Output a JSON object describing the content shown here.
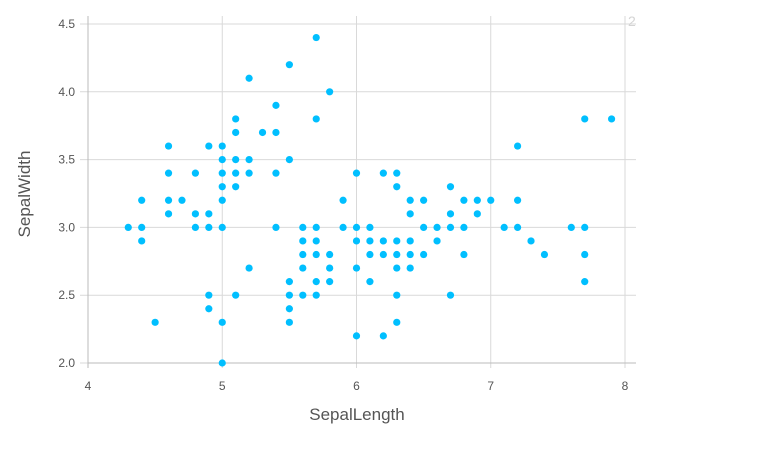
{
  "chart_data": {
    "type": "scatter",
    "xlabel": "SepalLength",
    "ylabel": "SepalWidth",
    "xlim": [
      4,
      8
    ],
    "ylim": [
      2.0,
      4.5
    ],
    "x_ticks": [
      "4",
      "5",
      "6",
      "7",
      "8"
    ],
    "y_ticks": [
      "2.0",
      "2.5",
      "3.0",
      "3.5",
      "4.0",
      "4.5"
    ],
    "grid": true,
    "legend": "none",
    "corner_label": "2",
    "colors": {
      "point": "#00bfff",
      "grid": "#d9d9d9",
      "axis": "#bbbbbb",
      "text": "#555555"
    },
    "points": [
      [
        4.3,
        3.0
      ],
      [
        4.4,
        3.2
      ],
      [
        4.4,
        3.0
      ],
      [
        4.4,
        2.9
      ],
      [
        4.5,
        2.3
      ],
      [
        4.6,
        3.6
      ],
      [
        4.6,
        3.4
      ],
      [
        4.6,
        3.2
      ],
      [
        4.6,
        3.1
      ],
      [
        4.7,
        3.2
      ],
      [
        4.8,
        3.4
      ],
      [
        4.8,
        3.1
      ],
      [
        4.8,
        3.0
      ],
      [
        4.9,
        3.6
      ],
      [
        4.9,
        3.1
      ],
      [
        4.9,
        3.0
      ],
      [
        4.9,
        2.5
      ],
      [
        4.9,
        2.4
      ],
      [
        5.0,
        3.6
      ],
      [
        5.0,
        3.5
      ],
      [
        5.0,
        3.4
      ],
      [
        5.0,
        3.3
      ],
      [
        5.0,
        3.2
      ],
      [
        5.0,
        3.0
      ],
      [
        5.0,
        2.3
      ],
      [
        5.0,
        2.0
      ],
      [
        5.1,
        3.8
      ],
      [
        5.1,
        3.7
      ],
      [
        5.1,
        3.5
      ],
      [
        5.1,
        3.4
      ],
      [
        5.1,
        3.3
      ],
      [
        5.1,
        2.5
      ],
      [
        5.2,
        4.1
      ],
      [
        5.2,
        3.5
      ],
      [
        5.2,
        3.4
      ],
      [
        5.2,
        2.7
      ],
      [
        5.3,
        3.7
      ],
      [
        5.4,
        3.9
      ],
      [
        5.4,
        3.7
      ],
      [
        5.4,
        3.4
      ],
      [
        5.4,
        3.0
      ],
      [
        5.5,
        4.2
      ],
      [
        5.5,
        3.5
      ],
      [
        5.5,
        2.6
      ],
      [
        5.5,
        2.5
      ],
      [
        5.5,
        2.4
      ],
      [
        5.5,
        2.3
      ],
      [
        5.6,
        3.0
      ],
      [
        5.6,
        2.9
      ],
      [
        5.6,
        2.8
      ],
      [
        5.6,
        2.7
      ],
      [
        5.6,
        2.5
      ],
      [
        5.7,
        4.4
      ],
      [
        5.7,
        3.8
      ],
      [
        5.7,
        3.0
      ],
      [
        5.7,
        2.9
      ],
      [
        5.7,
        2.8
      ],
      [
        5.7,
        2.6
      ],
      [
        5.7,
        2.5
      ],
      [
        5.8,
        4.0
      ],
      [
        5.8,
        2.8
      ],
      [
        5.8,
        2.7
      ],
      [
        5.8,
        2.6
      ],
      [
        5.9,
        3.2
      ],
      [
        5.9,
        3.0
      ],
      [
        6.0,
        3.4
      ],
      [
        6.0,
        3.0
      ],
      [
        6.0,
        2.9
      ],
      [
        6.0,
        2.7
      ],
      [
        6.0,
        2.2
      ],
      [
        6.1,
        3.0
      ],
      [
        6.1,
        2.9
      ],
      [
        6.1,
        2.8
      ],
      [
        6.1,
        2.6
      ],
      [
        6.2,
        3.4
      ],
      [
        6.2,
        2.9
      ],
      [
        6.2,
        2.8
      ],
      [
        6.2,
        2.2
      ],
      [
        6.3,
        3.4
      ],
      [
        6.3,
        3.3
      ],
      [
        6.3,
        2.9
      ],
      [
        6.3,
        2.8
      ],
      [
        6.3,
        2.7
      ],
      [
        6.3,
        2.5
      ],
      [
        6.3,
        2.3
      ],
      [
        6.4,
        3.2
      ],
      [
        6.4,
        3.1
      ],
      [
        6.4,
        2.9
      ],
      [
        6.4,
        2.8
      ],
      [
        6.4,
        2.7
      ],
      [
        6.5,
        3.2
      ],
      [
        6.5,
        3.0
      ],
      [
        6.5,
        2.8
      ],
      [
        6.6,
        3.0
      ],
      [
        6.6,
        2.9
      ],
      [
        6.7,
        3.3
      ],
      [
        6.7,
        3.1
      ],
      [
        6.7,
        3.0
      ],
      [
        6.7,
        2.5
      ],
      [
        6.8,
        3.2
      ],
      [
        6.8,
        3.0
      ],
      [
        6.8,
        2.8
      ],
      [
        6.9,
        3.2
      ],
      [
        6.9,
        3.1
      ],
      [
        7.0,
        3.2
      ],
      [
        7.1,
        3.0
      ],
      [
        7.2,
        3.6
      ],
      [
        7.2,
        3.2
      ],
      [
        7.2,
        3.0
      ],
      [
        7.3,
        2.9
      ],
      [
        7.4,
        2.8
      ],
      [
        7.6,
        3.0
      ],
      [
        7.7,
        3.8
      ],
      [
        7.7,
        3.0
      ],
      [
        7.7,
        2.8
      ],
      [
        7.7,
        2.6
      ],
      [
        7.9,
        3.8
      ]
    ]
  }
}
